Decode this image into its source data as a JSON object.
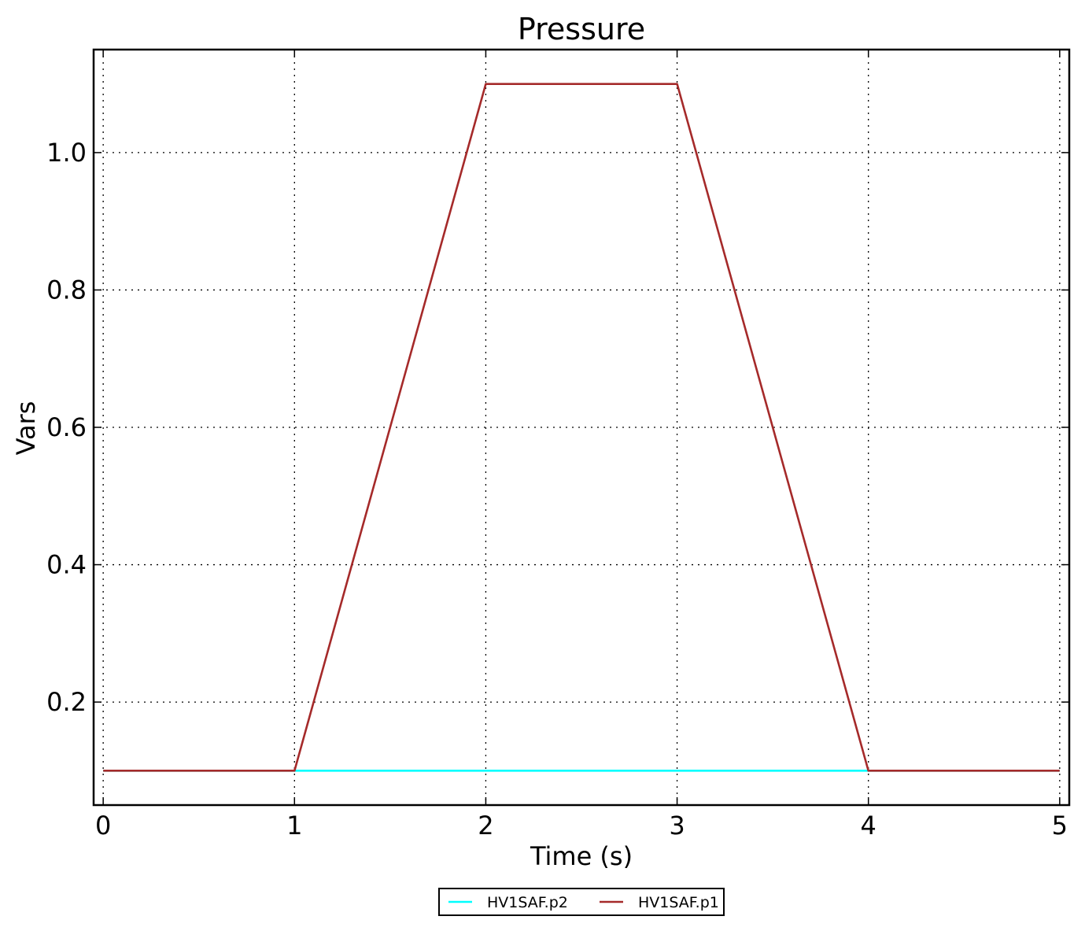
{
  "chart_data": {
    "type": "line",
    "title": "Pressure",
    "xlabel": "Time (s)",
    "ylabel": "Vars",
    "xlim": [
      -0.05,
      5.05
    ],
    "ylim": [
      0.05,
      1.15
    ],
    "x_ticks": [
      0,
      1,
      2,
      3,
      4,
      5
    ],
    "x_tick_labels": [
      "0",
      "1",
      "2",
      "3",
      "4",
      "5"
    ],
    "y_ticks": [
      0.2,
      0.4,
      0.6,
      0.8,
      1.0
    ],
    "y_tick_labels": [
      "0.2",
      "0.4",
      "0.6",
      "0.8",
      "1.0"
    ],
    "grid": true,
    "legend_position": "bottom-center",
    "series": [
      {
        "name": "HV1SAF.p2",
        "color": "#00ffff",
        "x": [
          0,
          1,
          2,
          3,
          4,
          5
        ],
        "y": [
          0.1,
          0.1,
          0.1,
          0.1,
          0.1,
          0.1
        ]
      },
      {
        "name": "HV1SAF.p1",
        "color": "#a52a2a",
        "x": [
          0,
          1,
          2,
          3,
          4,
          5
        ],
        "y": [
          0.1,
          0.1,
          1.1,
          1.1,
          0.1,
          0.1
        ]
      }
    ]
  }
}
